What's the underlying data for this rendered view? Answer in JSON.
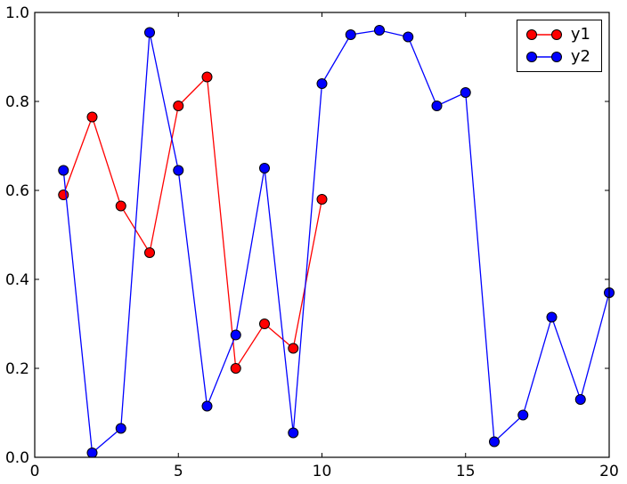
{
  "figure": {
    "background": "#ffffff",
    "axes_edge_color": "#000000"
  },
  "chart_data": {
    "type": "line",
    "title": "",
    "xlabel": "",
    "ylabel": "",
    "xlim": [
      0,
      20
    ],
    "ylim": [
      0.0,
      1.0
    ],
    "x_ticks": [
      0,
      5,
      10,
      15,
      20
    ],
    "x_tick_labels": [
      "0",
      "5",
      "10",
      "15",
      "20"
    ],
    "y_ticks": [
      0.0,
      0.2,
      0.4,
      0.6,
      0.8,
      1.0
    ],
    "y_tick_labels": [
      "0.0",
      "0.2",
      "0.4",
      "0.6",
      "0.8",
      "1.0"
    ],
    "grid": false,
    "legend": {
      "position": "upper right",
      "entries": [
        "y1",
        "y2"
      ]
    },
    "marker_edge_color": "#000000",
    "series": [
      {
        "name": "y1",
        "color": "#ff0000",
        "marker": "circle",
        "x": [
          1,
          2,
          3,
          4,
          5,
          6,
          7,
          8,
          9,
          10
        ],
        "values": [
          0.59,
          0.765,
          0.565,
          0.46,
          0.79,
          0.855,
          0.2,
          0.3,
          0.245,
          0.58
        ]
      },
      {
        "name": "y2",
        "color": "#0000ff",
        "marker": "circle",
        "x": [
          1,
          2,
          3,
          4,
          5,
          6,
          7,
          8,
          9,
          10,
          11,
          12,
          13,
          14,
          15,
          16,
          17,
          18,
          19,
          20
        ],
        "values": [
          0.645,
          0.01,
          0.065,
          0.955,
          0.645,
          0.115,
          0.275,
          0.65,
          0.055,
          0.84,
          0.95,
          0.96,
          0.945,
          0.79,
          0.82,
          0.035,
          0.095,
          0.315,
          0.13,
          0.37
        ]
      }
    ]
  }
}
